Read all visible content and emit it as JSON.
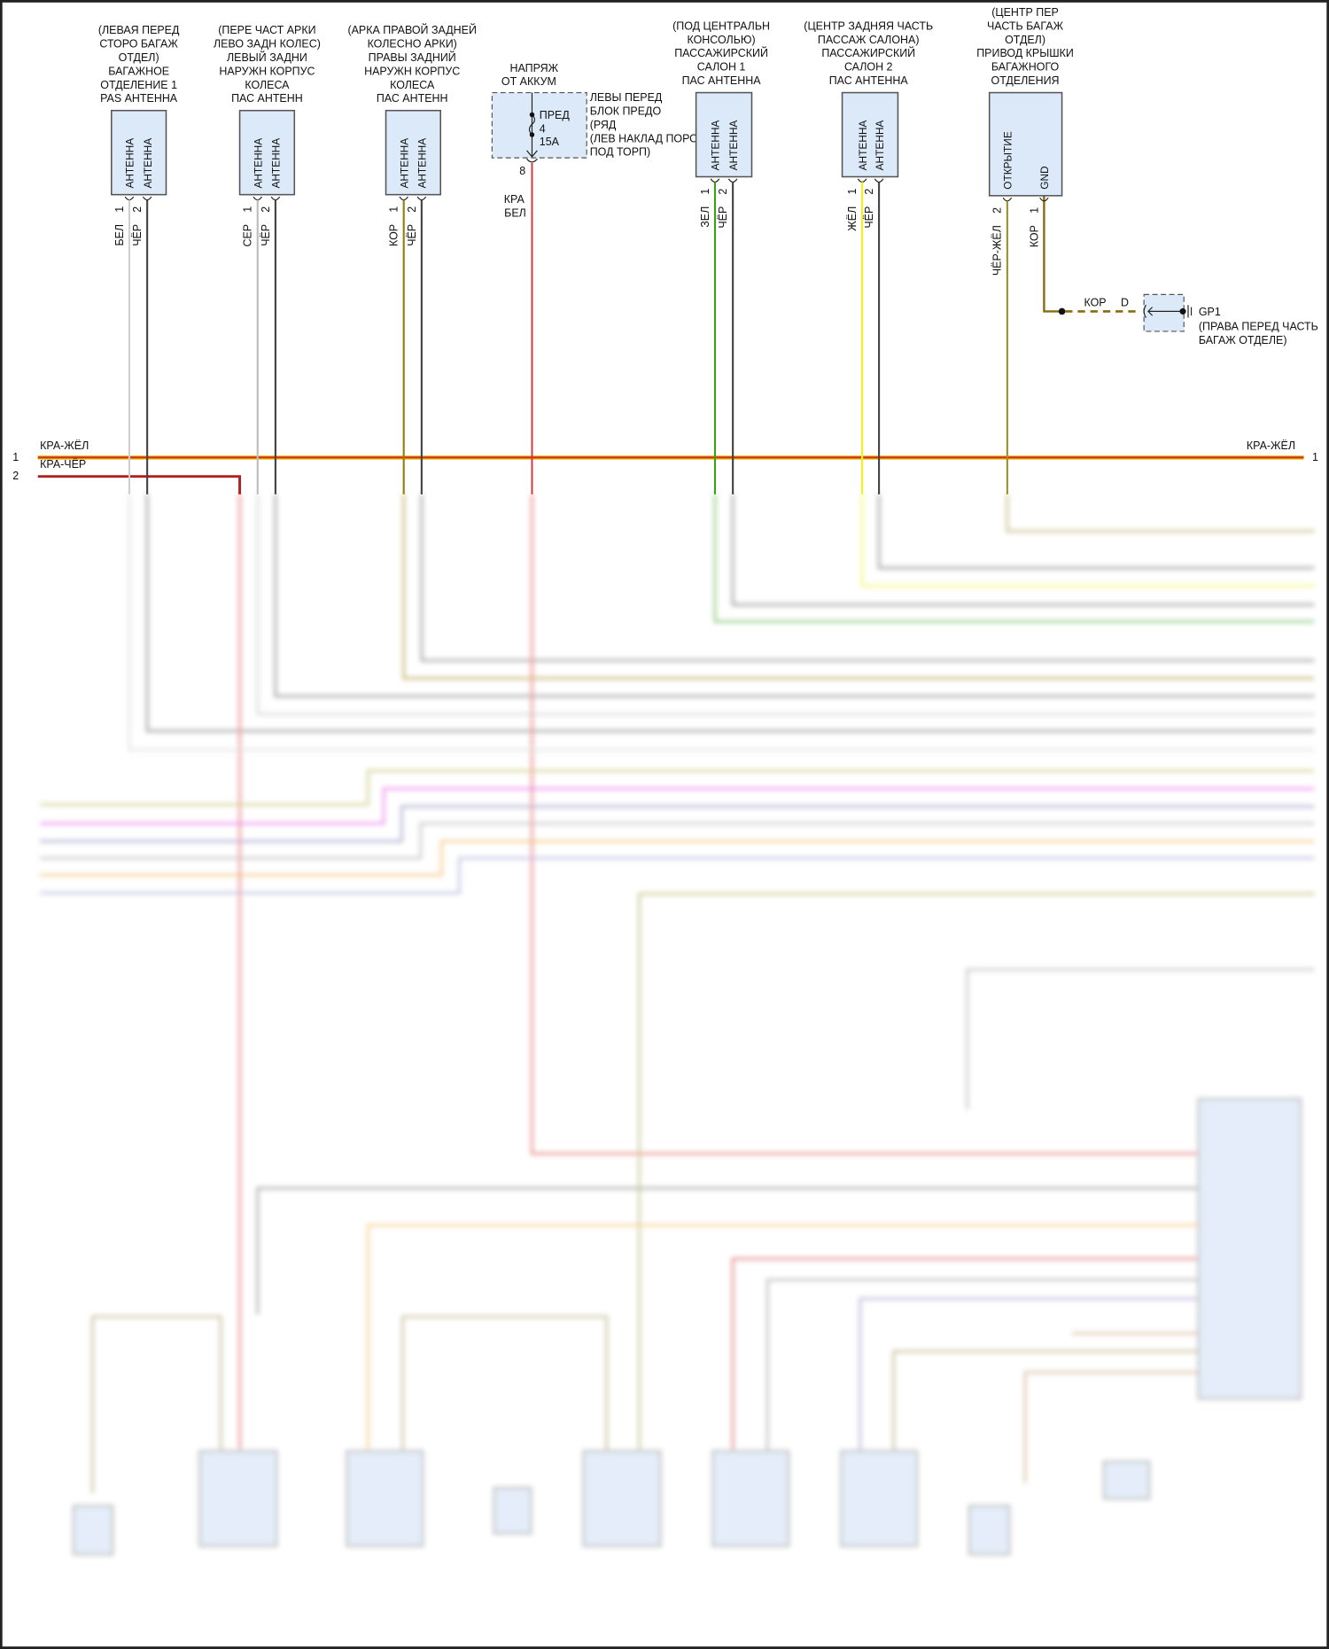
{
  "components": [
    {
      "desc": [
        "(ЛЕВАЯ ПЕРЕД",
        "СТОРО БАГАЖ",
        "ОТДЕЛ)",
        "БАГАЖНОЕ",
        "ОТДЕЛЕНИЕ 1",
        "PAS АНТЕННА"
      ],
      "pins": [
        {
          "num": "1",
          "wire": "БЕЛ",
          "inner": "АНТЕННА",
          "color": "#d0d0d0"
        },
        {
          "num": "2",
          "wire": "ЧЁР",
          "inner": "АНТЕННА",
          "color": "#444444"
        }
      ]
    },
    {
      "desc": [
        "(ПЕРЕ ЧАСТ АРКИ",
        "ЛЕВО ЗАДН КОЛЕС)",
        "ЛЕВЫЙ ЗАДНИ",
        "НАРУЖН КОРПУС",
        "КОЛЕСА",
        "ПАС АНТЕНН"
      ],
      "pins": [
        {
          "num": "1",
          "wire": "СЕР",
          "inner": "АНТЕННА",
          "color": "#bdbdbd"
        },
        {
          "num": "2",
          "wire": "ЧЁР",
          "inner": "АНТЕННА",
          "color": "#444444"
        }
      ]
    },
    {
      "desc": [
        "(АРКА ПРАВОЙ ЗАДНЕЙ",
        "КОЛЕСНО АРКИ)",
        "ПРАВЫ ЗАДНИЙ",
        "НАРУЖН КОРПУС",
        "КОЛЕСА",
        "ПАС АНТЕНН"
      ],
      "pins": [
        {
          "num": "1",
          "wire": "КОР",
          "inner": "АНТЕННА",
          "color": "#9a7a10"
        },
        {
          "num": "2",
          "wire": "ЧЁР",
          "inner": "АНТЕННА",
          "color": "#444444"
        }
      ]
    },
    {
      "desc": [
        "(ПОД ЦЕНТРАЛЬН",
        "КОНСОЛЬЮ)",
        "ПАССАЖИРСКИЙ",
        "САЛОН 1",
        "ПАС АНТЕННА"
      ],
      "pins": [
        {
          "num": "1",
          "wire": "ЗЕЛ",
          "inner": "АНТЕННА",
          "color": "#3aa020"
        },
        {
          "num": "2",
          "wire": "ЧЁР",
          "inner": "АНТЕННА",
          "color": "#444444"
        }
      ]
    },
    {
      "desc": [
        "(ЦЕНТР ЗАДНЯЯ ЧАСТЬ",
        "ПАССАЖ САЛОНА)",
        "ПАССАЖИРСКИЙ",
        "САЛОН 2",
        "ПАС АНТЕННА"
      ],
      "pins": [
        {
          "num": "1",
          "wire": "ЖЁЛ",
          "inner": "АНТЕННА",
          "color": "#f2f020"
        },
        {
          "num": "2",
          "wire": "ЧЁР",
          "inner": "АНТЕННА",
          "color": "#444444"
        }
      ]
    },
    {
      "desc": [
        "(ЦЕНТР ПЕР",
        "ЧАСТЬ БАГАЖ",
        "ОТДЕЛ)",
        "ПРИВОД КРЫШКИ",
        "БАГАЖНОГО",
        "ОТДЕЛЕНИЯ"
      ],
      "pins": [
        {
          "num": "2",
          "wire": "ЧЁР-ЖЁЛ",
          "inner": "ОТКРЫТИЕ",
          "color": "#a09030"
        },
        {
          "num": "1",
          "wire": "КОР",
          "inner": "GND",
          "color": "#8a6a10"
        }
      ]
    }
  ],
  "fuse": {
    "supply": [
      "НАПРЯЖ",
      "ОТ АККУМ"
    ],
    "inner": [
      "ПРЕД",
      "4",
      "15A"
    ],
    "location": [
      "ЛЕВЫ ПЕРЕД",
      "БЛОК ПРЕДО",
      "(РЯД",
      "(ЛЕВ НАКЛАД ПОРОГА",
      "ПОД ТОРП)"
    ],
    "pin": "8",
    "wire": [
      "КРА",
      "БЕЛ"
    ],
    "color": "#d83030"
  },
  "ground": {
    "wire": "КОР",
    "connector": "D",
    "name": "GP1",
    "location": [
      "(ПРАВА ПЕРЕД ЧАСТЬ",
      "БАГАЖ ОТДЕЛЕ)"
    ]
  },
  "bus": [
    {
      "num": "1",
      "label": "КРА-ЖЁЛ",
      "right_num": "1",
      "right_label": "КРА-ЖЁЛ"
    },
    {
      "num": "2",
      "label": "КРА-ЧЁР"
    }
  ]
}
